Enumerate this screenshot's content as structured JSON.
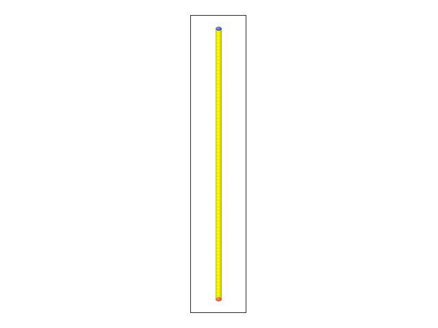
{
  "scene": {
    "background_color": "#ffffff",
    "frame_color": "#2a2a2a",
    "rod": {
      "body_color": "#f2f200",
      "body_shade_color": "#b8b800",
      "top_cap_color": "#4455dd",
      "bottom_cap_color": "#dd5533"
    }
  }
}
